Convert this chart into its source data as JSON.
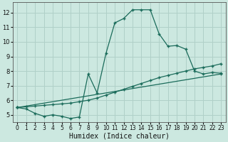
{
  "xlabel": "Humidex (Indice chaleur)",
  "bg_color": "#cce8e0",
  "grid_color": "#b0d0c8",
  "line_color": "#1a6b5a",
  "xlim": [
    -0.5,
    23.5
  ],
  "ylim": [
    4.5,
    12.7
  ],
  "xticks": [
    0,
    1,
    2,
    3,
    4,
    5,
    6,
    7,
    8,
    9,
    10,
    11,
    12,
    13,
    14,
    15,
    16,
    17,
    18,
    19,
    20,
    21,
    22,
    23
  ],
  "yticks": [
    5,
    6,
    7,
    8,
    9,
    10,
    11,
    12
  ],
  "curve1_x": [
    0,
    1,
    2,
    3,
    4,
    5,
    6,
    7,
    8,
    9,
    10,
    11,
    12,
    13,
    14,
    15,
    16,
    17,
    18,
    19,
    20,
    21,
    22,
    23
  ],
  "curve1_y": [
    5.5,
    5.4,
    5.1,
    4.9,
    5.0,
    4.9,
    4.75,
    4.85,
    7.8,
    6.5,
    9.2,
    11.3,
    11.6,
    12.2,
    12.2,
    12.2,
    10.55,
    9.7,
    9.75,
    9.5,
    8.0,
    7.8,
    7.9,
    7.85
  ],
  "curve2_x": [
    0,
    23
  ],
  "curve2_y": [
    5.5,
    7.8
  ],
  "curve3_x": [
    0,
    1,
    2,
    3,
    4,
    5,
    6,
    7,
    8,
    9,
    10,
    11,
    12,
    13,
    14,
    15,
    16,
    17,
    18,
    19,
    20,
    21,
    22,
    23
  ],
  "curve3_y": [
    5.5,
    5.55,
    5.6,
    5.65,
    5.7,
    5.75,
    5.8,
    5.9,
    6.0,
    6.15,
    6.35,
    6.55,
    6.75,
    6.95,
    7.15,
    7.35,
    7.55,
    7.7,
    7.85,
    8.0,
    8.15,
    8.25,
    8.35,
    8.5
  ],
  "xtick_fontsize": 5.5,
  "ytick_fontsize": 6.0,
  "xlabel_fontsize": 7.0
}
